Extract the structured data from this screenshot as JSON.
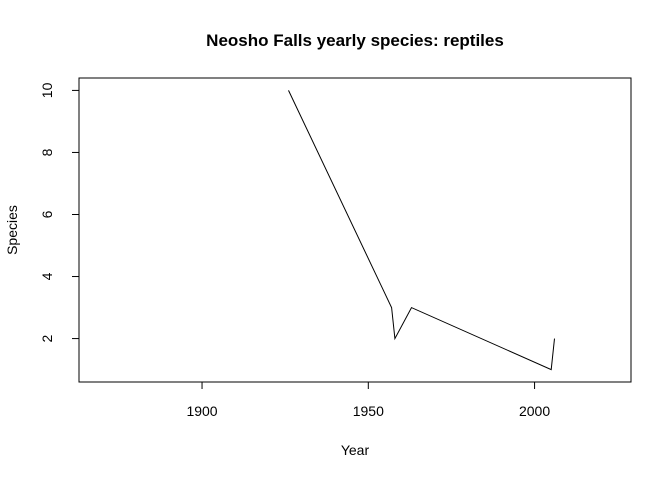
{
  "chart_data": {
    "type": "line",
    "title": "Neosho Falls yearly species: reptiles",
    "xlabel": "Year",
    "ylabel": "Species",
    "xlim": [
      1863,
      2029
    ],
    "ylim": [
      0.6,
      10.4
    ],
    "x_ticks": [
      1900,
      1950,
      2000
    ],
    "y_ticks": [
      2,
      4,
      6,
      8,
      10
    ],
    "grid": false,
    "series": [
      {
        "color": "#000000",
        "x": [
          1926,
          1957,
          1958,
          1963,
          2005,
          2006
        ],
        "y": [
          10,
          3,
          2,
          3,
          1,
          2
        ]
      }
    ]
  }
}
